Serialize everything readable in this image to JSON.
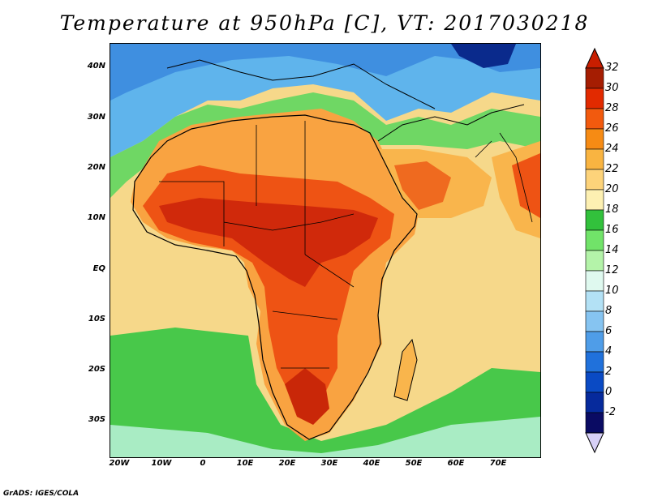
{
  "title": "Temperature at 950hPa [C], VT: 2017030218",
  "credit": "GrADS: IGES/COLA",
  "map": {
    "projection": "lat-lon",
    "lon_range": [
      -22,
      80
    ],
    "lat_range": [
      -37,
      45
    ],
    "lat_ticks": [
      "40N",
      "30N",
      "20N",
      "10N",
      "EQ",
      "10S",
      "20S",
      "30S"
    ],
    "lat_values": [
      40,
      30,
      20,
      10,
      0,
      -10,
      -20,
      -30
    ],
    "lon_ticks": [
      "20W",
      "10W",
      "0",
      "10E",
      "20E",
      "30E",
      "40E",
      "50E",
      "60E",
      "70E"
    ],
    "lon_values": [
      -20,
      -10,
      0,
      10,
      20,
      30,
      40,
      50,
      60,
      70
    ]
  },
  "colorbar": {
    "labels": [
      "32",
      "30",
      "28",
      "26",
      "24",
      "22",
      "20",
      "18",
      "16",
      "14",
      "12",
      "10",
      "8",
      "6",
      "4",
      "2",
      "0",
      "-2"
    ],
    "colors": [
      "#a51d02",
      "#e22a00",
      "#f25a0e",
      "#f68b14",
      "#f9b441",
      "#fdd37a",
      "#fdf0b2",
      "#32c13c",
      "#71e369",
      "#b4f3a9",
      "#dff9ef",
      "#b3e1f5",
      "#86c4f1",
      "#4f9de8",
      "#2071db",
      "#0a4ac4",
      "#062a9c",
      "#0a0b63"
    ],
    "top_arrow_color": "#c81e00",
    "bottom_arrow_color": "#d7d0f7"
  }
}
